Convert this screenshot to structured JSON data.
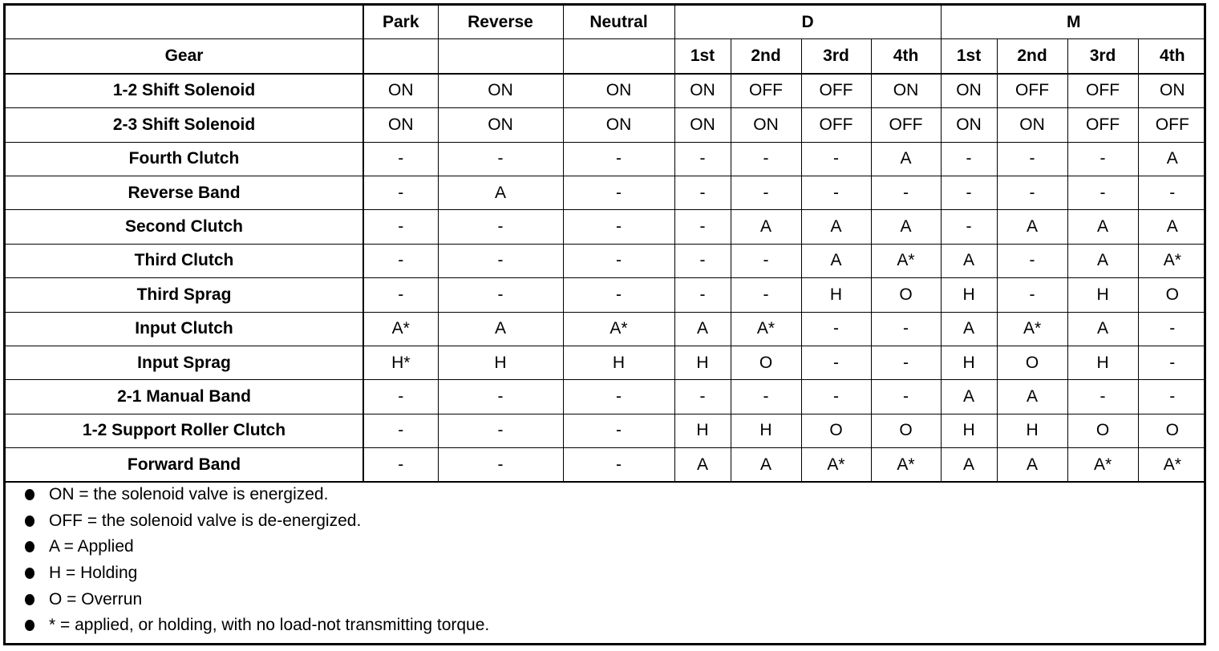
{
  "header": {
    "row1": [
      "",
      "Park",
      "Reverse",
      "Neutral",
      "D",
      "M"
    ],
    "row2": [
      "Gear",
      "",
      "",
      "",
      "1st",
      "2nd",
      "3rd",
      "4th",
      "1st",
      "2nd",
      "3rd",
      "4th"
    ]
  },
  "rows": [
    {
      "label": "1-2 Shift Solenoid",
      "values": [
        "ON",
        "ON",
        "ON",
        "ON",
        "OFF",
        "OFF",
        "ON",
        "ON",
        "OFF",
        "OFF",
        "ON"
      ]
    },
    {
      "label": "2-3 Shift Solenoid",
      "values": [
        "ON",
        "ON",
        "ON",
        "ON",
        "ON",
        "OFF",
        "OFF",
        "ON",
        "ON",
        "OFF",
        "OFF"
      ]
    },
    {
      "label": "Fourth Clutch",
      "values": [
        "-",
        "-",
        "-",
        "-",
        "-",
        "-",
        "A",
        "-",
        "-",
        "-",
        "A"
      ]
    },
    {
      "label": "Reverse Band",
      "values": [
        "-",
        "A",
        "-",
        "-",
        "-",
        "-",
        "-",
        "-",
        "-",
        "-",
        "-"
      ]
    },
    {
      "label": "Second Clutch",
      "values": [
        "-",
        "-",
        "-",
        "-",
        "A",
        "A",
        "A",
        "-",
        "A",
        "A",
        "A"
      ]
    },
    {
      "label": "Third Clutch",
      "values": [
        "-",
        "-",
        "-",
        "-",
        "-",
        "A",
        "A*",
        "A",
        "-",
        "A",
        "A*"
      ]
    },
    {
      "label": "Third Sprag",
      "values": [
        "-",
        "-",
        "-",
        "-",
        "-",
        "H",
        "O",
        "H",
        "-",
        "H",
        "O"
      ]
    },
    {
      "label": "Input Clutch",
      "values": [
        "A*",
        "A",
        "A*",
        "A",
        "A*",
        "-",
        "-",
        "A",
        "A*",
        "A",
        "-"
      ]
    },
    {
      "label": "Input Sprag",
      "values": [
        "H*",
        "H",
        "H",
        "H",
        "O",
        "-",
        "-",
        "H",
        "O",
        "H",
        "-"
      ]
    },
    {
      "label": "2-1 Manual Band",
      "values": [
        "-",
        "-",
        "-",
        "-",
        "-",
        "-",
        "-",
        "A",
        "A",
        "-",
        "-"
      ]
    },
    {
      "label": "1-2 Support Roller Clutch",
      "values": [
        "-",
        "-",
        "-",
        "H",
        "H",
        "O",
        "O",
        "H",
        "H",
        "O",
        "O"
      ]
    },
    {
      "label": "Forward Band",
      "values": [
        "-",
        "-",
        "-",
        "A",
        "A",
        "A*",
        "A*",
        "A",
        "A",
        "A*",
        "A*"
      ]
    }
  ],
  "legend": [
    "ON = the solenoid valve is energized.",
    "OFF = the solenoid valve is de-energized.",
    "A = Applied",
    "H = Holding",
    "O = Overrun",
    "* = applied, or holding, with no load-not transmitting torque."
  ]
}
